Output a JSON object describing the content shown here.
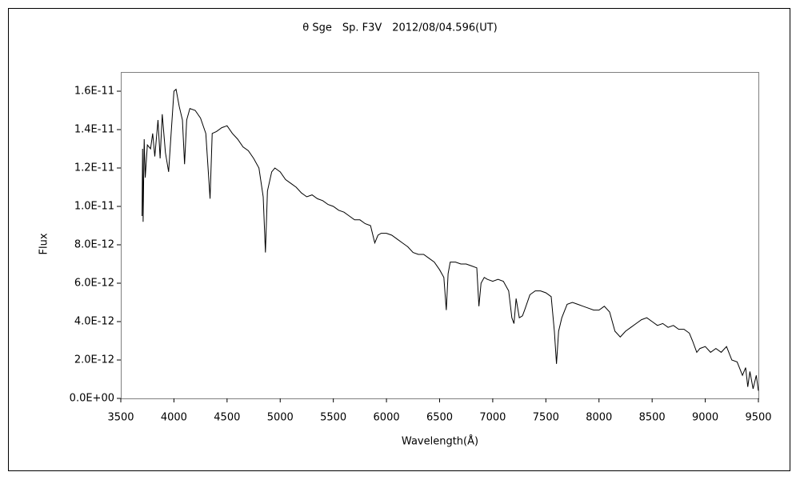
{
  "chart_data": {
    "type": "line",
    "title": "θ Sge　Sp. F3V　2012/08/04.596(UT)",
    "x_label": "Wavelength(Å)",
    "y_label": "Flux",
    "xlim": [
      3500,
      9500
    ],
    "xticks": [
      3500,
      4000,
      4500,
      5000,
      5500,
      6000,
      6500,
      7000,
      7500,
      8000,
      8500,
      9000,
      9500
    ],
    "ylim": [
      0,
      1.7e-11
    ],
    "yticks": [
      {
        "value": 0,
        "label": "0.0E+00"
      },
      {
        "value": 2e-12,
        "label": "2.0E-12"
      },
      {
        "value": 4e-12,
        "label": "4.0E-12"
      },
      {
        "value": 6e-12,
        "label": "6.0E-12"
      },
      {
        "value": 8e-12,
        "label": "8.0E-12"
      },
      {
        "value": 1e-11,
        "label": "1.0E-11"
      },
      {
        "value": 1.2e-11,
        "label": "1.2E-11"
      },
      {
        "value": 1.4e-11,
        "label": "1.4E-11"
      },
      {
        "value": 1.6e-11,
        "label": "1.6E-11"
      }
    ],
    "grid": false,
    "color": "#000000",
    "x": [
      3700,
      3705,
      3710,
      3720,
      3730,
      3750,
      3780,
      3800,
      3820,
      3850,
      3870,
      3890,
      3920,
      3950,
      3970,
      4000,
      4020,
      4050,
      4080,
      4100,
      4120,
      4150,
      4200,
      4250,
      4300,
      4340,
      4360,
      4400,
      4450,
      4500,
      4550,
      4600,
      4650,
      4700,
      4750,
      4800,
      4840,
      4861,
      4880,
      4920,
      4950,
      5000,
      5050,
      5100,
      5150,
      5200,
      5250,
      5300,
      5350,
      5400,
      5450,
      5500,
      5550,
      5600,
      5650,
      5700,
      5750,
      5800,
      5850,
      5890,
      5920,
      5950,
      6000,
      6050,
      6100,
      6150,
      6200,
      6250,
      6300,
      6350,
      6400,
      6450,
      6500,
      6540,
      6563,
      6580,
      6600,
      6650,
      6700,
      6750,
      6800,
      6850,
      6870,
      6890,
      6920,
      6950,
      7000,
      7050,
      7100,
      7150,
      7180,
      7200,
      7220,
      7250,
      7280,
      7300,
      7350,
      7400,
      7450,
      7500,
      7550,
      7580,
      7600,
      7620,
      7650,
      7700,
      7750,
      7800,
      7850,
      7900,
      7950,
      8000,
      8050,
      8100,
      8150,
      8200,
      8250,
      8300,
      8350,
      8400,
      8450,
      8500,
      8550,
      8600,
      8650,
      8700,
      8750,
      8800,
      8850,
      8880,
      8920,
      8950,
      9000,
      9050,
      9100,
      9150,
      9200,
      9250,
      9300,
      9350,
      9380,
      9400,
      9420,
      9450,
      9480,
      9500
    ],
    "values": [
      9.5e-12,
      1.3e-11,
      9.2e-12,
      1.35e-11,
      1.15e-11,
      1.32e-11,
      1.3e-11,
      1.38e-11,
      1.26e-11,
      1.45e-11,
      1.25e-11,
      1.48e-11,
      1.28e-11,
      1.18e-11,
      1.35e-11,
      1.6e-11,
      1.61e-11,
      1.52e-11,
      1.45e-11,
      1.22e-11,
      1.45e-11,
      1.51e-11,
      1.5e-11,
      1.46e-11,
      1.38e-11,
      1.04e-11,
      1.38e-11,
      1.39e-11,
      1.41e-11,
      1.42e-11,
      1.38e-11,
      1.35e-11,
      1.31e-11,
      1.29e-11,
      1.25e-11,
      1.2e-11,
      1.05e-11,
      7.6e-12,
      1.08e-11,
      1.18e-11,
      1.2e-11,
      1.18e-11,
      1.14e-11,
      1.12e-11,
      1.1e-11,
      1.07e-11,
      1.05e-11,
      1.06e-11,
      1.04e-11,
      1.03e-11,
      1.01e-11,
      1e-11,
      9.8e-12,
      9.7e-12,
      9.5e-12,
      9.3e-12,
      9.3e-12,
      9.1e-12,
      9e-12,
      8.1e-12,
      8.5e-12,
      8.6e-12,
      8.6e-12,
      8.5e-12,
      8.3e-12,
      8.1e-12,
      7.9e-12,
      7.6e-12,
      7.5e-12,
      7.5e-12,
      7.3e-12,
      7.1e-12,
      6.7e-12,
      6.3e-12,
      4.6e-12,
      6.5e-12,
      7.1e-12,
      7.1e-12,
      7e-12,
      7e-12,
      6.9e-12,
      6.8e-12,
      4.8e-12,
      6e-12,
      6.3e-12,
      6.2e-12,
      6.1e-12,
      6.2e-12,
      6.1e-12,
      5.6e-12,
      4.2e-12,
      3.9e-12,
      5.2e-12,
      4.2e-12,
      4.3e-12,
      4.6e-12,
      5.4e-12,
      5.6e-12,
      5.6e-12,
      5.5e-12,
      5.3e-12,
      3.5e-12,
      1.8e-12,
      3.5e-12,
      4.2e-12,
      4.9e-12,
      5e-12,
      4.9e-12,
      4.8e-12,
      4.7e-12,
      4.6e-12,
      4.6e-12,
      4.8e-12,
      4.5e-12,
      3.5e-12,
      3.2e-12,
      3.5e-12,
      3.7e-12,
      3.9e-12,
      4.1e-12,
      4.2e-12,
      4e-12,
      3.8e-12,
      3.9e-12,
      3.7e-12,
      3.8e-12,
      3.6e-12,
      3.6e-12,
      3.4e-12,
      3e-12,
      2.4e-12,
      2.6e-12,
      2.7e-12,
      2.4e-12,
      2.6e-12,
      2.4e-12,
      2.7e-12,
      2e-12,
      1.9e-12,
      1.2e-12,
      1.6e-12,
      6e-13,
      1.4e-12,
      5e-13,
      1.2e-12,
      4e-13
    ]
  }
}
